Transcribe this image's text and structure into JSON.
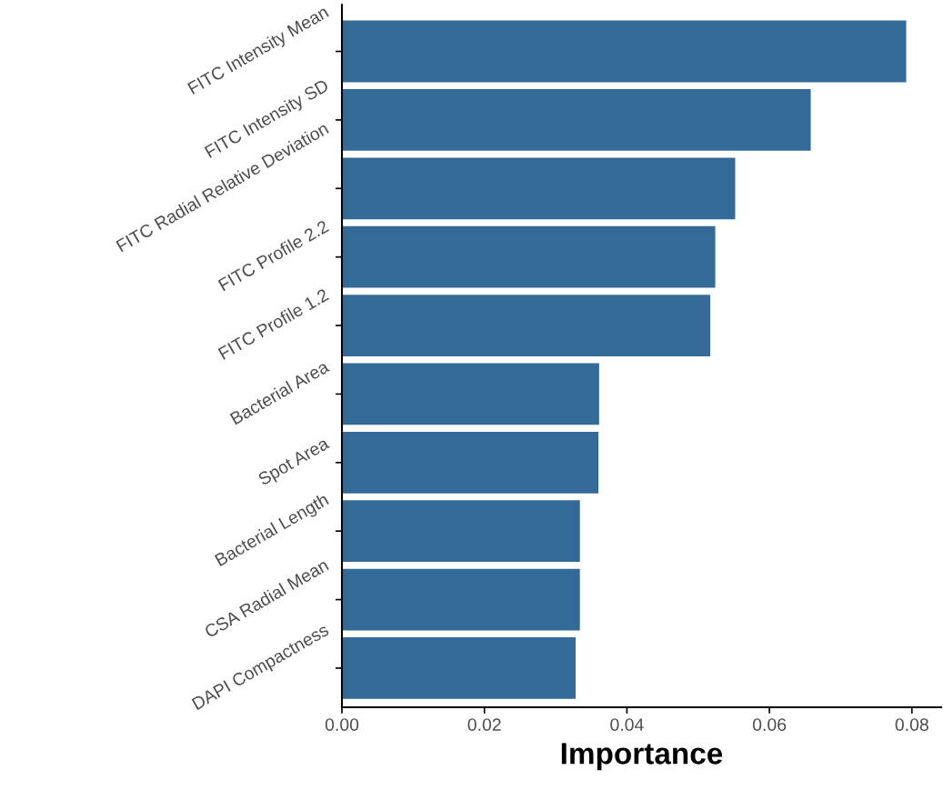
{
  "chart_data": {
    "type": "bar",
    "orientation": "horizontal",
    "xlabel": "Importance",
    "categories": [
      "FITC Intensity Mean",
      "FITC Intensity SD",
      "FITC Radial Relative Deviation",
      "FITC Profile 2.2",
      "FITC Profile 1.2",
      "Bacterial Area",
      "Spot Area",
      "Bacterial Length",
      "CSA Radial Mean",
      "DAPI Compactness"
    ],
    "values": [
      0.0792,
      0.0658,
      0.0552,
      0.0524,
      0.0517,
      0.0361,
      0.036,
      0.0334,
      0.0334,
      0.0328
    ],
    "color": "#336a98",
    "xlim": [
      0,
      0.0841
    ],
    "xticks": [
      {
        "value": 0,
        "label": "0.00"
      },
      {
        "value": 0.02,
        "label": "0.02"
      },
      {
        "value": 0.04,
        "label": "0.04"
      },
      {
        "value": 0.06,
        "label": "0.06"
      },
      {
        "value": 0.08,
        "label": "0.08"
      }
    ],
    "grid": false,
    "legend": false
  }
}
